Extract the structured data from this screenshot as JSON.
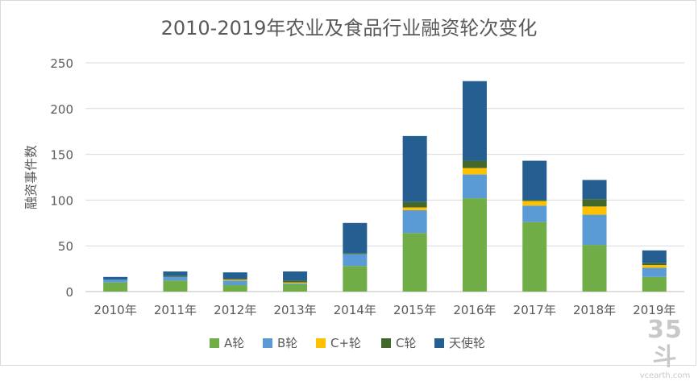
{
  "chart_data": {
    "type": "bar",
    "stacked": true,
    "title": "2010-2019年农业及食品行业融资轮次变化",
    "xlabel": "",
    "ylabel": "融资事件数",
    "ylim": [
      0,
      250
    ],
    "yticks": [
      0,
      50,
      100,
      150,
      200,
      250
    ],
    "grid": true,
    "legend": "bottom",
    "categories": [
      "2010年",
      "2011年",
      "2012年",
      "2013年",
      "2014年",
      "2015年",
      "2016年",
      "2017年",
      "2018年",
      "2019年"
    ],
    "series": [
      {
        "name": "A轮",
        "color": "#70ad47",
        "values": [
          10,
          12,
          7,
          8,
          28,
          64,
          102,
          76,
          51,
          16
        ]
      },
      {
        "name": "B轮",
        "color": "#5b9bd5",
        "values": [
          3,
          4,
          5,
          1,
          13,
          25,
          26,
          18,
          33,
          10
        ]
      },
      {
        "name": "C+轮",
        "color": "#ffc000",
        "values": [
          0,
          0,
          1,
          1,
          0,
          3,
          7,
          5,
          9,
          3
        ]
      },
      {
        "name": "C轮",
        "color": "#43682b",
        "values": [
          0,
          1,
          1,
          2,
          1,
          6,
          8,
          1,
          8,
          2
        ]
      },
      {
        "name": "天使轮",
        "color": "#255e91",
        "values": [
          3,
          5,
          7,
          10,
          33,
          72,
          87,
          43,
          21,
          14
        ]
      }
    ]
  },
  "watermark": {
    "logo": "35斗",
    "site": "vcearth.com"
  }
}
